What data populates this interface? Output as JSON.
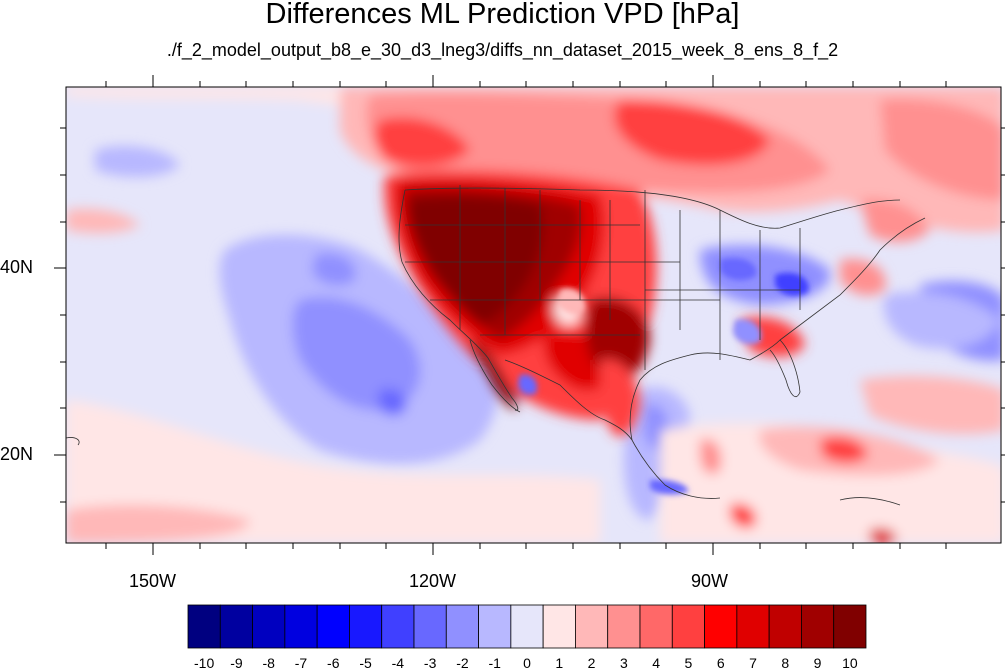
{
  "title": "Differences ML Prediction VPD [hPa]",
  "subtitle": "./f_2_model_output_b8_e_30_d3_lneg3/diffs_nn_dataset_2015_week_8_ens_8_f_2",
  "axes": {
    "lon_labels": [
      "150W",
      "120W",
      "90W"
    ],
    "lat_labels": [
      "40N",
      "20N"
    ]
  },
  "colorbar": {
    "labels": [
      "-10",
      "-9",
      "-8",
      "-7",
      "-6",
      "-5",
      "-4",
      "-3",
      "-2",
      "-1",
      "0",
      "1",
      "2",
      "3",
      "4",
      "5",
      "6",
      "7",
      "8",
      "9",
      "10"
    ],
    "colors": [
      "#000080",
      "#0000a0",
      "#0000c0",
      "#0000e0",
      "#0000ff",
      "#1818ff",
      "#4040ff",
      "#6868ff",
      "#9090ff",
      "#b8b8ff",
      "#e6e6fa",
      "#ffe6e6",
      "#ffb8b8",
      "#ff9090",
      "#ff6868",
      "#ff4040",
      "#ff0000",
      "#e00000",
      "#c00000",
      "#a00000",
      "#800000"
    ]
  },
  "map_colors": {
    "ocean_base": "#e6e6fa",
    "light_blue": "#b8b8ff",
    "mid_blue": "#9090ff",
    "blue": "#6868ff",
    "deep_blue": "#4040ff",
    "pale_red": "#ffe6e6",
    "light_red": "#ffb8b8",
    "mid_red": "#ff9090",
    "red": "#ff4040",
    "strong_red": "#e00000",
    "dark_red": "#a00000",
    "darkest_red": "#800000"
  }
}
